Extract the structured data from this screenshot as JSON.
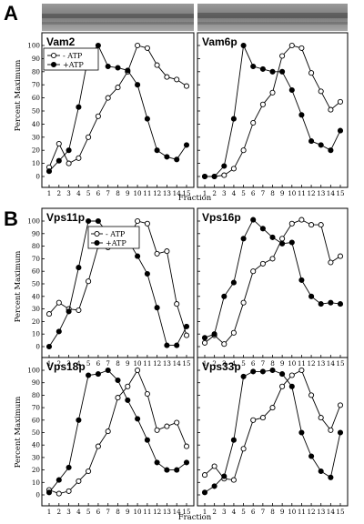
{
  "figure": {
    "panel_a_letter": "A",
    "panel_b_letter": "B",
    "ylabel": "Percent Maximum",
    "xlabel": "Fraction"
  },
  "legend": {
    "minus_label": "- ATP",
    "plus_label": "+ATP"
  },
  "chart_data": [
    {
      "type": "line",
      "title": "Vam2",
      "x": [
        1,
        2,
        3,
        4,
        5,
        6,
        7,
        8,
        9,
        10,
        11,
        12,
        13,
        14,
        15
      ],
      "ylim": [
        0,
        100
      ],
      "yticks": [
        0,
        10,
        20,
        30,
        40,
        50,
        60,
        70,
        80,
        90,
        100
      ],
      "series": [
        {
          "name": "- ATP",
          "marker": "open",
          "values": [
            7,
            25,
            10,
            14,
            30,
            46,
            60,
            68,
            80,
            100,
            98,
            85,
            76,
            74,
            69
          ]
        },
        {
          "name": "+ATP",
          "marker": "filled",
          "values": [
            4,
            12,
            20,
            53,
            92,
            100,
            84,
            83,
            81,
            70,
            44,
            20,
            15,
            13,
            24
          ]
        }
      ]
    },
    {
      "type": "line",
      "title": "Vam6p",
      "x": [
        1,
        2,
        3,
        4,
        5,
        6,
        7,
        8,
        9,
        10,
        11,
        12,
        13,
        14,
        15
      ],
      "ylim": [
        0,
        100
      ],
      "yticks": [
        0,
        10,
        20,
        30,
        40,
        50,
        60,
        70,
        80,
        90,
        100
      ],
      "series": [
        {
          "name": "- ATP",
          "marker": "open",
          "values": [
            0,
            0,
            1,
            6,
            20,
            41,
            55,
            64,
            92,
            100,
            98,
            79,
            65,
            51,
            57
          ]
        },
        {
          "name": "+ATP",
          "marker": "filled",
          "values": [
            0,
            0,
            8,
            44,
            100,
            84,
            82,
            80,
            80,
            66,
            47,
            27,
            24,
            20,
            35
          ]
        }
      ]
    },
    {
      "type": "line",
      "title": "Vps11p",
      "x": [
        1,
        2,
        3,
        4,
        5,
        6,
        7,
        8,
        9,
        10,
        11,
        12,
        13,
        14,
        15
      ],
      "ylim": [
        0,
        100
      ],
      "yticks": [
        0,
        10,
        20,
        30,
        40,
        50,
        60,
        70,
        80,
        90,
        100
      ],
      "series": [
        {
          "name": "- ATP",
          "marker": "open",
          "values": [
            26,
            35,
            30,
            29,
            52,
            80,
            79,
            87,
            85,
            100,
            98,
            74,
            76,
            34,
            9
          ]
        },
        {
          "name": "+ATP",
          "marker": "filled",
          "values": [
            0,
            12,
            28,
            63,
            100,
            100,
            90,
            82,
            85,
            72,
            58,
            31,
            1,
            1,
            16
          ]
        }
      ]
    },
    {
      "type": "line",
      "title": "Vps16p",
      "x": [
        1,
        2,
        3,
        4,
        5,
        6,
        7,
        8,
        9,
        10,
        11,
        12,
        13,
        14,
        15
      ],
      "ylim": [
        0,
        100
      ],
      "yticks": [
        0,
        10,
        20,
        30,
        40,
        50,
        60,
        70,
        80,
        90,
        100
      ],
      "series": [
        {
          "name": "- ATP",
          "marker": "open",
          "values": [
            3,
            9,
            2,
            11,
            35,
            60,
            66,
            70,
            86,
            98,
            101,
            97,
            97,
            67,
            72
          ]
        },
        {
          "name": "+ATP",
          "marker": "filled",
          "values": [
            7,
            10,
            40,
            51,
            86,
            101,
            94,
            87,
            82,
            83,
            53,
            40,
            34,
            35,
            34
          ]
        }
      ]
    },
    {
      "type": "line",
      "title": "Vps18p",
      "x": [
        1,
        2,
        3,
        4,
        5,
        6,
        7,
        8,
        9,
        10,
        11,
        12,
        13,
        14,
        15
      ],
      "ylim": [
        0,
        100
      ],
      "yticks": [
        0,
        10,
        20,
        30,
        40,
        50,
        60,
        70,
        80,
        90,
        100
      ],
      "series": [
        {
          "name": "- ATP",
          "marker": "open",
          "values": [
            4,
            1,
            3,
            11,
            19,
            39,
            51,
            78,
            87,
            100,
            81,
            52,
            55,
            58,
            39
          ]
        },
        {
          "name": "+ATP",
          "marker": "filled",
          "values": [
            2,
            12,
            22,
            60,
            96,
            97,
            100,
            92,
            76,
            61,
            44,
            26,
            20,
            20,
            26
          ]
        }
      ]
    },
    {
      "type": "line",
      "title": "Vps33p",
      "x": [
        1,
        2,
        3,
        4,
        5,
        6,
        7,
        8,
        9,
        10,
        11,
        12,
        13,
        14,
        15
      ],
      "ylim": [
        0,
        100
      ],
      "yticks": [
        0,
        10,
        20,
        30,
        40,
        50,
        60,
        70,
        80,
        90,
        100
      ],
      "series": [
        {
          "name": "- ATP",
          "marker": "open",
          "values": [
            16,
            23,
            13,
            12,
            37,
            60,
            62,
            70,
            87,
            96,
            100,
            80,
            62,
            52,
            72
          ]
        },
        {
          "name": "+ATP",
          "marker": "filled",
          "values": [
            2,
            7,
            15,
            44,
            95,
            99,
            99,
            100,
            97,
            87,
            50,
            31,
            19,
            14,
            50
          ]
        }
      ]
    }
  ]
}
